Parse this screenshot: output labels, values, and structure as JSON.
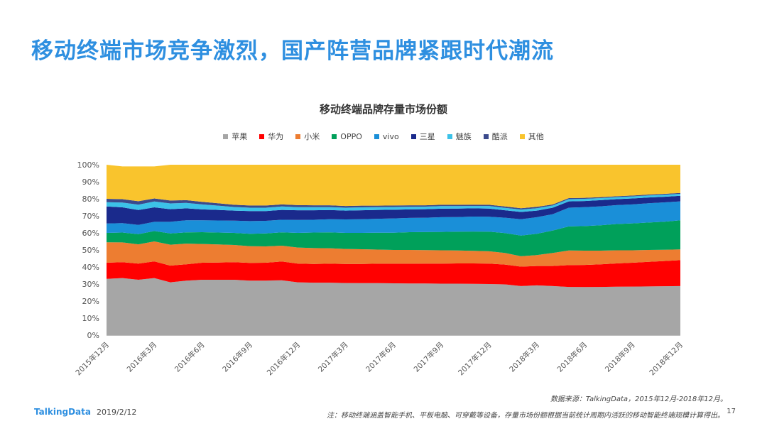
{
  "headline": "移动终端市场竞争激烈，国产阵营品牌紧跟时代潮流",
  "footer": {
    "source": "数据来源：TalkingData，2015年12月-2018年12月。",
    "note": "注：移动终端涵盖智能手机、平板电脑、可穿戴等设备，存量市场份额根据当前统计周期内活跃的移动智能终端规模计算得出。",
    "page": "17",
    "brand": "TalkingData",
    "date": "2019/2/12"
  },
  "chart_data": {
    "type": "area",
    "stacked": true,
    "title": "移动终端品牌存量市场份额",
    "legend_position": "top",
    "grid": false,
    "ylim": [
      0,
      100
    ],
    "y_ticks": [
      "0%",
      "10%",
      "20%",
      "30%",
      "40%",
      "50%",
      "60%",
      "70%",
      "80%",
      "90%",
      "100%"
    ],
    "x": [
      "2015年12月",
      "2016年1月",
      "2016年2月",
      "2016年3月",
      "2016年4月",
      "2016年5月",
      "2016年6月",
      "2016年7月",
      "2016年8月",
      "2016年9月",
      "2016年10月",
      "2016年11月",
      "2016年12月",
      "2017年1月",
      "2017年2月",
      "2017年3月",
      "2017年4月",
      "2017年5月",
      "2017年6月",
      "2017年7月",
      "2017年8月",
      "2017年9月",
      "2017年10月",
      "2017年11月",
      "2017年12月",
      "2018年1月",
      "2018年2月",
      "2018年3月",
      "2018年4月",
      "2018年5月",
      "2018年6月",
      "2018年7月",
      "2018年8月",
      "2018年9月",
      "2018年10月",
      "2018年11月",
      "2018年12月"
    ],
    "x_tick_labels": [
      "2015年12月",
      "2016年3月",
      "2016年6月",
      "2016年9月",
      "2016年12月",
      "2017年3月",
      "2017年6月",
      "2017年9月",
      "2017年12月",
      "2018年3月",
      "2018年6月",
      "2018年9月",
      "2018年12月"
    ],
    "series": [
      {
        "name": "苹果",
        "color": "#a6a6a6",
        "values": [
          33,
          33.5,
          32.5,
          33.5,
          31,
          32,
          32.5,
          32.5,
          32.5,
          32,
          32,
          32.2,
          31,
          30.8,
          30.8,
          30.6,
          30.5,
          30.5,
          30.4,
          30.3,
          30.3,
          30.2,
          30.2,
          30.1,
          30,
          29.8,
          28.8,
          29.2,
          28.8,
          28.3,
          28.2,
          28.3,
          28.4,
          28.5,
          28.6,
          28.7,
          28.8
        ]
      },
      {
        "name": "华为",
        "color": "#ff0000",
        "values": [
          9.5,
          9.3,
          9.5,
          9.8,
          9.8,
          9.6,
          10,
          10.1,
          10.3,
          10.4,
          10.5,
          11,
          11,
          11,
          11.1,
          11.2,
          11.3,
          11.4,
          11.5,
          11.6,
          11.7,
          11.8,
          11.9,
          12,
          12,
          11.6,
          11.4,
          11.4,
          11.8,
          12.8,
          13,
          13.3,
          13.7,
          14,
          14.4,
          14.8,
          15.2
        ]
      },
      {
        "name": "小米",
        "color": "#ed7d31",
        "values": [
          12,
          11.6,
          11.3,
          11.7,
          12.3,
          12.1,
          11,
          10.6,
          10.1,
          9.8,
          9.6,
          9.3,
          9.4,
          9.3,
          9.1,
          8.8,
          8.6,
          8.3,
          8.1,
          8.1,
          7.9,
          7.8,
          7.6,
          7.4,
          7.2,
          6.8,
          6.1,
          6.4,
          7.6,
          8.6,
          8.4,
          8,
          7.7,
          7.3,
          7,
          6.6,
          6.3
        ]
      },
      {
        "name": "OPPO",
        "color": "#00a05a",
        "values": [
          5.5,
          5.8,
          6,
          6.1,
          6.6,
          6.6,
          6.9,
          7,
          7.1,
          7.3,
          7.6,
          7.8,
          8.6,
          9.1,
          9.3,
          9.4,
          9.6,
          9.9,
          10.1,
          10.4,
          10.6,
          10.8,
          11,
          11.3,
          11.5,
          11.7,
          12.1,
          12.5,
          13.2,
          14.1,
          14.4,
          14.9,
          15.4,
          15.8,
          16.1,
          16.5,
          17.1
        ]
      },
      {
        "name": "vivo",
        "color": "#1a8fd8",
        "values": [
          5.5,
          5.5,
          5.4,
          5.4,
          6.8,
          7.1,
          7,
          7.1,
          7.2,
          7.4,
          7.4,
          7.4,
          7.6,
          7.5,
          7.7,
          7.9,
          8,
          8.2,
          8.4,
          8.4,
          8.4,
          8.6,
          8.6,
          8.8,
          8.8,
          9,
          9.6,
          9.7,
          9.6,
          11,
          11.1,
          11.1,
          11.1,
          11.1,
          11.3,
          11.3,
          11.1
        ]
      },
      {
        "name": "三星",
        "color": "#1a2a8c",
        "values": [
          10,
          9.3,
          8.7,
          8.5,
          7.4,
          7,
          6.4,
          6.2,
          5.9,
          5.9,
          5.7,
          5.8,
          5.7,
          5.6,
          5.4,
          5.2,
          5.3,
          5.2,
          5.1,
          5,
          5,
          5,
          5,
          4.8,
          4.8,
          4.4,
          4.3,
          3.9,
          3.8,
          3.7,
          3.6,
          3.6,
          3.5,
          3.5,
          3.4,
          3.3,
          3.3
        ]
      },
      {
        "name": "魅族",
        "color": "#3cc2e8",
        "values": [
          2.5,
          2.8,
          3.2,
          3.4,
          3.4,
          3.2,
          2.9,
          2.5,
          2.1,
          2,
          2,
          2,
          1.8,
          1.8,
          1.7,
          1.7,
          1.7,
          1.6,
          1.6,
          1.5,
          1.5,
          1.5,
          1.4,
          1.4,
          1.5,
          1.4,
          1.4,
          1.4,
          1.3,
          1.3,
          1.3,
          1.2,
          1.2,
          1.2,
          1.2,
          1.2,
          1.1
        ]
      },
      {
        "name": "酷派",
        "color": "#3b4a8c",
        "values": [
          2,
          2,
          2,
          1.8,
          1.7,
          1.6,
          1.5,
          1.4,
          1.3,
          1.3,
          1.3,
          1.2,
          1.2,
          1.1,
          1.1,
          1,
          1,
          0.9,
          0.9,
          0.9,
          0.8,
          0.8,
          0.8,
          0.8,
          0.7,
          0.8,
          0.8,
          0.8,
          0.6,
          0.6,
          0.6,
          0.6,
          0.5,
          0.5,
          0.5,
          0.5,
          0.5
        ]
      },
      {
        "name": "其他",
        "color": "#f9c42d",
        "values": [
          20,
          19.2,
          20.4,
          18.8,
          21,
          20.8,
          21.8,
          22.6,
          23.5,
          23.9,
          23.9,
          23.3,
          23.7,
          23.8,
          23.8,
          24.2,
          24,
          24,
          23.9,
          23.8,
          23.8,
          23.5,
          23.5,
          23.4,
          23.5,
          24.5,
          25.5,
          24.7,
          23.3,
          19.6,
          19.4,
          19,
          18.5,
          18.1,
          17.5,
          17.1,
          16.6
        ]
      }
    ]
  }
}
